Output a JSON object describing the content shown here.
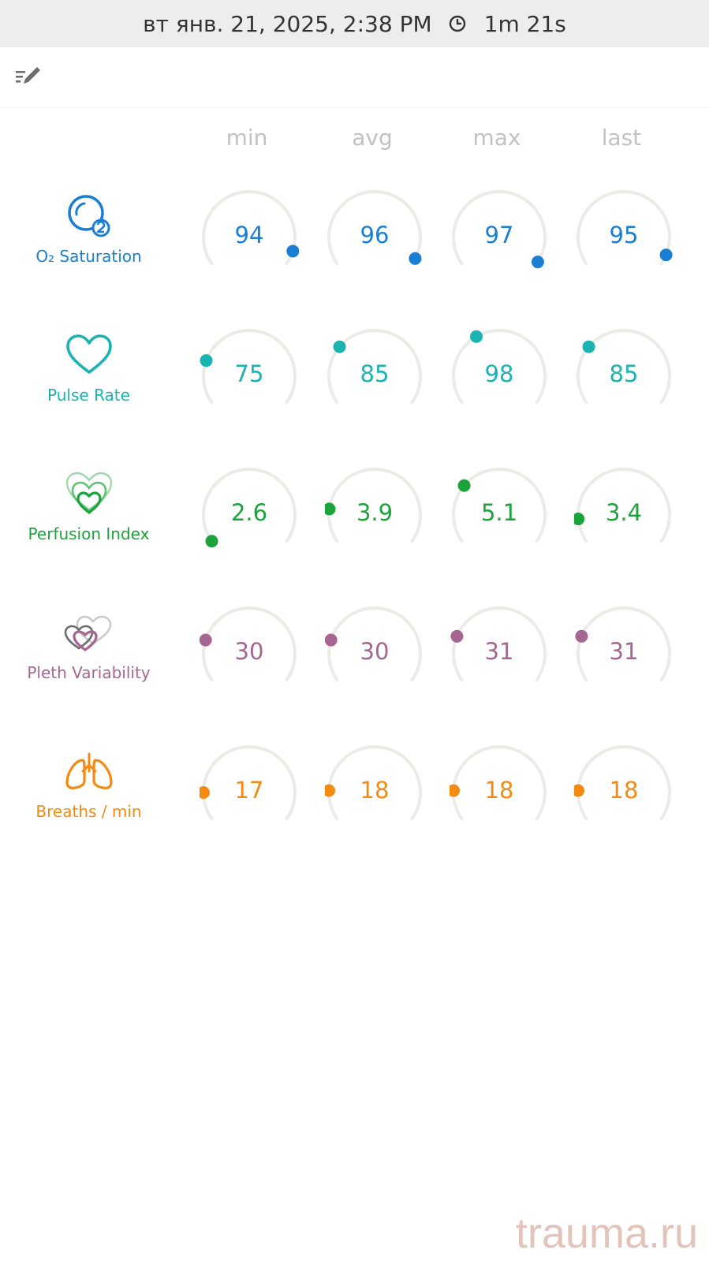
{
  "status_bar": {
    "datetime": "вт янв. 21, 2025, 2:38 PM",
    "duration": "1m 21s"
  },
  "toolbar": {
    "edit_icon": "edit-list-icon"
  },
  "columns": [
    "min",
    "avg",
    "max",
    "last"
  ],
  "rows": [
    {
      "label": "O₂ Saturation",
      "icon": "o2-saturation-icon",
      "color": "#1a7fd4",
      "values": [
        "94",
        "96",
        "97",
        "95"
      ],
      "levels": [
        0.93,
        0.97,
        0.99,
        0.95
      ]
    },
    {
      "label": "Pulse Rate",
      "icon": "heart-icon",
      "color": "#19b3b1",
      "values": [
        "75",
        "85",
        "98",
        "85"
      ],
      "levels": [
        0.22,
        0.3,
        0.38,
        0.3
      ]
    },
    {
      "label": "Perfusion Index",
      "icon": "perfusion-hearts-icon",
      "color": "#1ca33c",
      "values": [
        "2.6",
        "3.9",
        "5.1",
        "3.4"
      ],
      "levels": [
        0.0,
        0.17,
        0.3,
        0.12
      ]
    },
    {
      "label": "Pleth Variability",
      "icon": "pleth-hearts-icon",
      "color": "#a56690",
      "values": [
        "30",
        "30",
        "31",
        "31"
      ],
      "levels": [
        0.21,
        0.21,
        0.23,
        0.23
      ]
    },
    {
      "label": "Breaths / min",
      "icon": "lungs-icon",
      "color": "#f58a12",
      "values": [
        "17",
        "18",
        "18",
        "18"
      ],
      "levels": [
        0.14,
        0.15,
        0.15,
        0.15
      ]
    }
  ],
  "watermark": "trauma.ru"
}
